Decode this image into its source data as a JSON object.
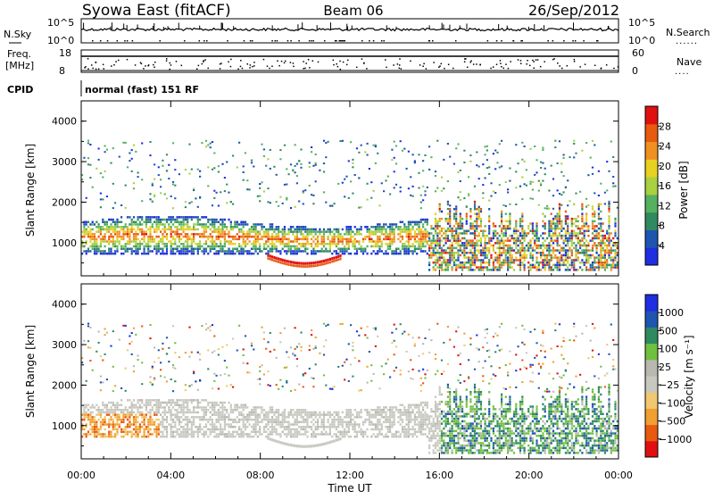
{
  "header": {
    "station": "Syowa East (fitACF)",
    "beam": "Beam 06",
    "date": "26/Sep/2012"
  },
  "strip_labels": {
    "nsky": "N.Sky",
    "freq_line1": "Freq.",
    "freq_line2": "[MHz]",
    "cpid": "CPID",
    "nsearch": "N.Search",
    "nave": "Nave",
    "nsky_top_tick": "10^5",
    "nsky_bottom_tick": "10^0",
    "freq_ticks": [
      "18",
      "8"
    ],
    "nave_ticks": [
      "60",
      "0"
    ],
    "cpid_text": "normal (fast) 151 RF"
  },
  "colors": {
    "power": [
      "#1e2ee0",
      "#1e55b0",
      "#2f8a60",
      "#55b060",
      "#a8d040",
      "#e8d020",
      "#f09020",
      "#e85a10",
      "#e01010"
    ],
    "velocity": [
      "#e01010",
      "#e85a10",
      "#f0a030",
      "#f0c870",
      "#c8c8c0",
      "#b8b8b0",
      "#70c040",
      "#2f8a60",
      "#1e55b0",
      "#1e2ee0"
    ]
  },
  "chart_data": [
    {
      "type": "heatmap",
      "name": "power",
      "ylabel": "Slant Range [km]",
      "ylim": [
        180,
        4500
      ],
      "y_ticks": [
        "1000",
        "2000",
        "3000",
        "4000"
      ],
      "xlim_hours": [
        0,
        24
      ],
      "x_tick_labels": [
        "00:00",
        "04:00",
        "08:00",
        "12:00",
        "16:00",
        "20:00",
        "00:00"
      ],
      "colorbar": {
        "label": "Power [dB]",
        "range": [
          0,
          32
        ],
        "tick_labels": [
          "4",
          "8",
          "12",
          "16",
          "20",
          "24",
          "28"
        ]
      }
    },
    {
      "type": "heatmap",
      "name": "velocity",
      "ylabel": "Slant Range [km]",
      "ylim": [
        180,
        4500
      ],
      "y_ticks": [
        "1000",
        "2000",
        "3000",
        "4000"
      ],
      "xlim_hours": [
        0,
        24
      ],
      "xlabel": "Time UT",
      "x_tick_labels": [
        "00:00",
        "04:00",
        "08:00",
        "12:00",
        "16:00",
        "20:00",
        "00:00"
      ],
      "colorbar": {
        "label": "Velocity [m s⁻¹]",
        "tick_labels": [
          "1000",
          "500",
          "100",
          "25",
          "−25",
          "−100",
          "−500",
          "−1000"
        ]
      }
    }
  ]
}
